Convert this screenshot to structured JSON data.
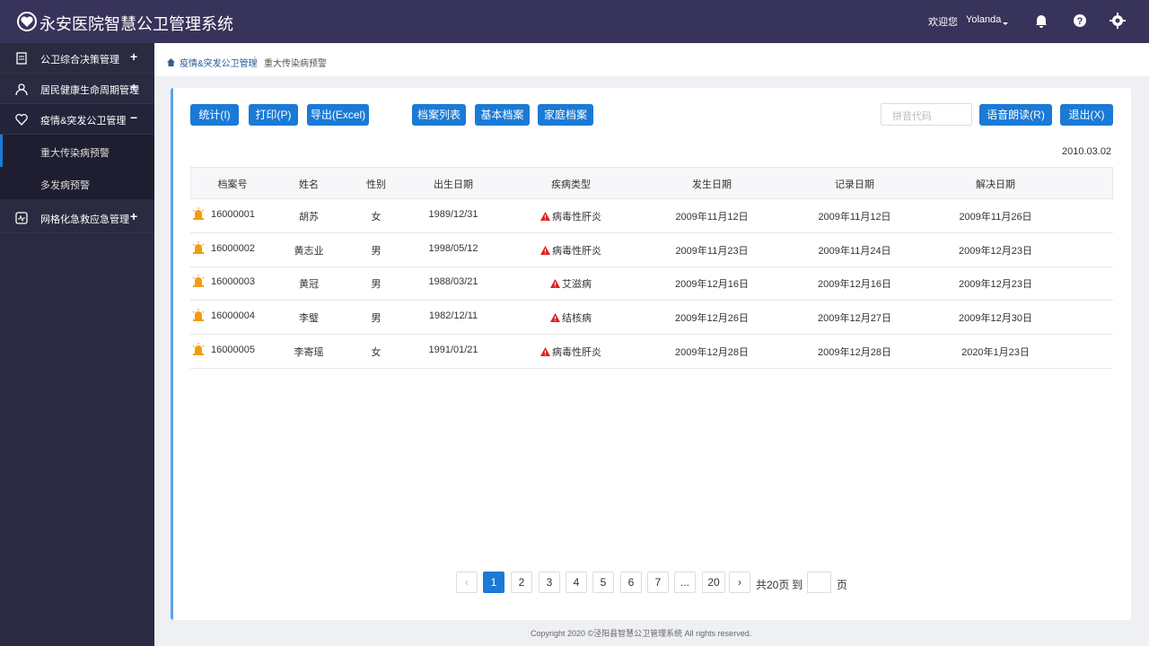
{
  "header": {
    "title": "永安医院智慧公卫管理系统",
    "welcome": "欢迎您",
    "user": "Yolanda"
  },
  "sidebar": {
    "items": [
      {
        "label": "公卫综合决策管理",
        "toggle": "+"
      },
      {
        "label": "居民健康生命周期管理",
        "toggle": "+"
      },
      {
        "label": "疫情&突发公卫管理",
        "toggle": "−",
        "children": [
          "重大传染病预警",
          "多发病预警"
        ]
      },
      {
        "label": "网格化急救应急管理",
        "toggle": "+"
      }
    ]
  },
  "breadcrumb": [
    "疫情&突发公卫管理",
    "重大传染病预警"
  ],
  "toolbar": {
    "group1": [
      "统计(I)",
      "打印(P)",
      "导出(Excel)"
    ],
    "group2": [
      "档案列表",
      "基本档案",
      "家庭档案"
    ],
    "search_placeholder": "拼音代码",
    "group3": [
      "语音朗读(R)",
      "退出(X)"
    ]
  },
  "date": "2010.03.02",
  "table": {
    "columns": [
      "档案号",
      "姓名",
      "性别",
      "出生日期",
      "疾病类型",
      "发生日期",
      "记录日期",
      "解决日期"
    ],
    "rows": [
      [
        "16000001",
        "胡苏",
        "女",
        "1989/12/31",
        "病毒性肝炎",
        "2009年11月12日",
        "2009年11月12日",
        "2009年11月26日"
      ],
      [
        "16000002",
        "黄志业",
        "男",
        "1998/05/12",
        "病毒性肝炎",
        "2009年11月23日",
        "2009年11月24日",
        "2009年12月23日"
      ],
      [
        "16000003",
        "黄冠",
        "男",
        "1988/03/21",
        "艾滋病",
        "2009年12月16日",
        "2009年12月16日",
        "2009年12月23日"
      ],
      [
        "16000004",
        "李璧",
        "男",
        "1982/12/11",
        "结核病",
        "2009年12月26日",
        "2009年12月27日",
        "2009年12月30日"
      ],
      [
        "16000005",
        "李寄瑶",
        "女",
        "1991/01/21",
        "病毒性肝炎",
        "2009年12月28日",
        "2009年12月28日",
        "2020年1月23日"
      ]
    ]
  },
  "pagination": {
    "pages": [
      "1",
      "2",
      "3",
      "4",
      "5",
      "6",
      "7",
      "...",
      "20"
    ],
    "total": "共20页",
    "goto": "到",
    "unit": "页"
  },
  "footer": "Copyright 2020 ©泾阳县智慧公卫管理系统 All rights reserved."
}
